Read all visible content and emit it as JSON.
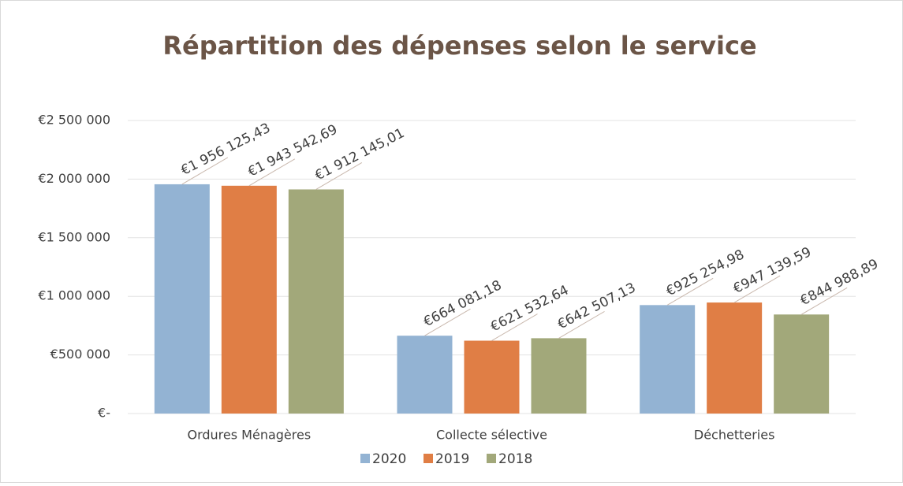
{
  "chart_data": {
    "type": "bar",
    "title": "Répartition des dépenses selon le service",
    "categories": [
      "Ordures Ménagères",
      "Collecte sélective",
      "Déchetteries"
    ],
    "series": [
      {
        "name": "2020",
        "color": "#93b3d3",
        "values": [
          1956125.43,
          664081.18,
          925254.98
        ],
        "value_labels": [
          "€1 956 125,43",
          "€664 081,18",
          "€925 254,98"
        ]
      },
      {
        "name": "2019",
        "color": "#e07e45",
        "values": [
          1943542.69,
          621532.64,
          947139.59
        ],
        "value_labels": [
          "€1 943 542,69",
          "€621 532,64",
          "€947 139,59"
        ]
      },
      {
        "name": "2018",
        "color": "#a2a87a",
        "values": [
          1912145.01,
          642507.13,
          844988.89
        ],
        "value_labels": [
          "€1 912 145,01",
          "€642 507,13",
          "€844 988,89"
        ]
      }
    ],
    "ylim": [
      0,
      2500000
    ],
    "yticks": [
      {
        "value": 0,
        "label": "€-"
      },
      {
        "value": 500000,
        "label": "€500 000"
      },
      {
        "value": 1000000,
        "label": "€1 000 000"
      },
      {
        "value": 1500000,
        "label": "€1 500 000"
      },
      {
        "value": 2000000,
        "label": "€2 000 000"
      },
      {
        "value": 2500000,
        "label": "€2 500 000"
      }
    ],
    "grid": true,
    "legend": "bottom"
  }
}
